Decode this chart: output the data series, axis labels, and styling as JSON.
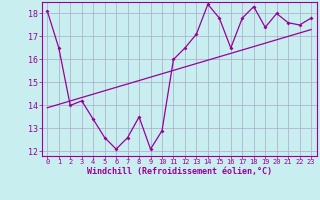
{
  "xlabel": "Windchill (Refroidissement éolien,°C)",
  "ylabel": "",
  "background_color": "#c8eef0",
  "grid_color": "#aaaacc",
  "line_color": "#990099",
  "xlim": [
    -0.5,
    23.5
  ],
  "ylim": [
    11.8,
    18.5
  ],
  "xticks": [
    0,
    1,
    2,
    3,
    4,
    5,
    6,
    7,
    8,
    9,
    10,
    11,
    12,
    13,
    14,
    15,
    16,
    17,
    18,
    19,
    20,
    21,
    22,
    23
  ],
  "yticks": [
    12,
    13,
    14,
    15,
    16,
    17,
    18
  ],
  "line1_x": [
    0,
    1,
    2,
    3,
    4,
    5,
    6,
    7,
    8,
    9,
    10,
    11,
    12,
    13,
    14,
    15,
    16,
    17,
    18,
    19,
    20,
    21,
    22,
    23
  ],
  "line1_y": [
    18.1,
    16.5,
    14.0,
    14.2,
    13.4,
    12.6,
    12.1,
    12.6,
    13.5,
    12.1,
    12.9,
    16.0,
    16.5,
    17.1,
    18.4,
    17.8,
    16.5,
    17.8,
    18.3,
    17.4,
    18.0,
    17.6,
    17.5,
    17.8
  ],
  "line2_x": [
    0,
    23
  ],
  "line2_y": [
    13.9,
    17.3
  ],
  "fontsize_xlabel": 6,
  "fontsize_xtick": 5,
  "fontsize_ytick": 6
}
